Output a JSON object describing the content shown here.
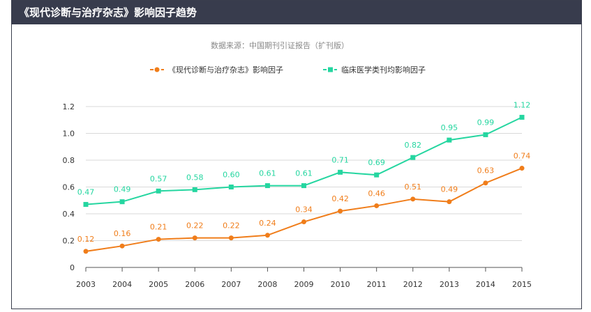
{
  "header": {
    "title": "《现代诊断与治疗杂志》影响因子趋势"
  },
  "chart_data": {
    "type": "line",
    "subtitle": "数据来源：中国期刊引证报告（扩刊版）",
    "categories": [
      "2003",
      "2004",
      "2005",
      "2006",
      "2007",
      "2008",
      "2009",
      "2010",
      "2011",
      "2012",
      "2013",
      "2014",
      "2015"
    ],
    "ylim": [
      0,
      1.2
    ],
    "yticks": [
      "0",
      "0.2",
      "0.4",
      "0.6",
      "0.8",
      "1.0",
      "1.2"
    ],
    "grid": true,
    "legend_position": "top-center",
    "series": [
      {
        "name": "《现代诊断与治疗杂志》影响因子",
        "color": "#f07d1a",
        "marker": "circle",
        "values": [
          0.12,
          0.16,
          0.21,
          0.22,
          0.22,
          0.24,
          0.34,
          0.42,
          0.46,
          0.51,
          0.49,
          0.63,
          0.74
        ],
        "labels": [
          "0.12",
          "0.16",
          "0.21",
          "0.22",
          "0.22",
          "0.24",
          "0.34",
          "0.42",
          "0.46",
          "0.51",
          "0.49",
          "0.63",
          "0.74"
        ]
      },
      {
        "name": "临床医学类刊均影响因子",
        "color": "#25d6a0",
        "marker": "square",
        "values": [
          0.47,
          0.49,
          0.57,
          0.58,
          0.6,
          0.61,
          0.61,
          0.71,
          0.69,
          0.82,
          0.95,
          0.99,
          1.12
        ],
        "labels": [
          "0.47",
          "0.49",
          "0.57",
          "0.58",
          "0.60",
          "0.61",
          "0.61",
          "0.71",
          "0.69",
          "0.82",
          "0.95",
          "0.99",
          "1.12"
        ]
      }
    ]
  }
}
